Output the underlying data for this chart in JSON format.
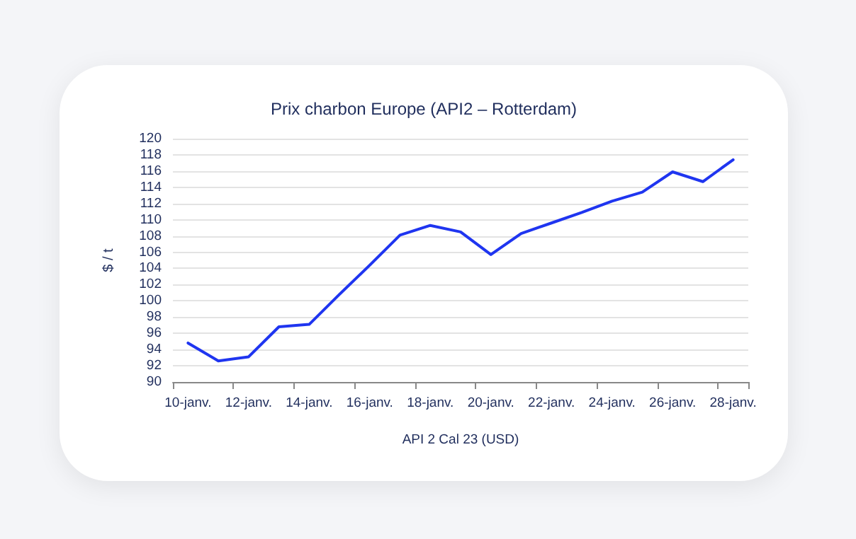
{
  "chart_data": {
    "type": "line",
    "title": "Prix charbon Europe (API2 – Rotterdam)",
    "xlabel": "API 2 Cal 23 (USD)",
    "ylabel": "$ / t",
    "categories": [
      "10-janv.",
      null,
      "12-janv.",
      null,
      "14-janv.",
      null,
      "16-janv.",
      null,
      "18-janv.",
      null,
      "20-janv.",
      null,
      "22-janv.",
      null,
      "24-janv.",
      null,
      "26-janv.",
      null,
      "28-janv."
    ],
    "series": [
      {
        "color": "#1f35f0",
        "values": [
          94.8,
          92.6,
          93.1,
          96.8,
          97.1,
          100.8,
          104.4,
          108.1,
          109.3,
          108.5,
          105.7,
          108.3,
          109.6,
          110.9,
          112.3,
          113.4,
          115.9,
          114.7,
          117.4
        ]
      }
    ],
    "ylim": [
      90,
      120
    ],
    "yticks": [
      90,
      92,
      94,
      96,
      98,
      100,
      102,
      104,
      106,
      108,
      110,
      112,
      114,
      116,
      118,
      120
    ],
    "grid": "y",
    "marker": "none",
    "line_style": "solid"
  }
}
